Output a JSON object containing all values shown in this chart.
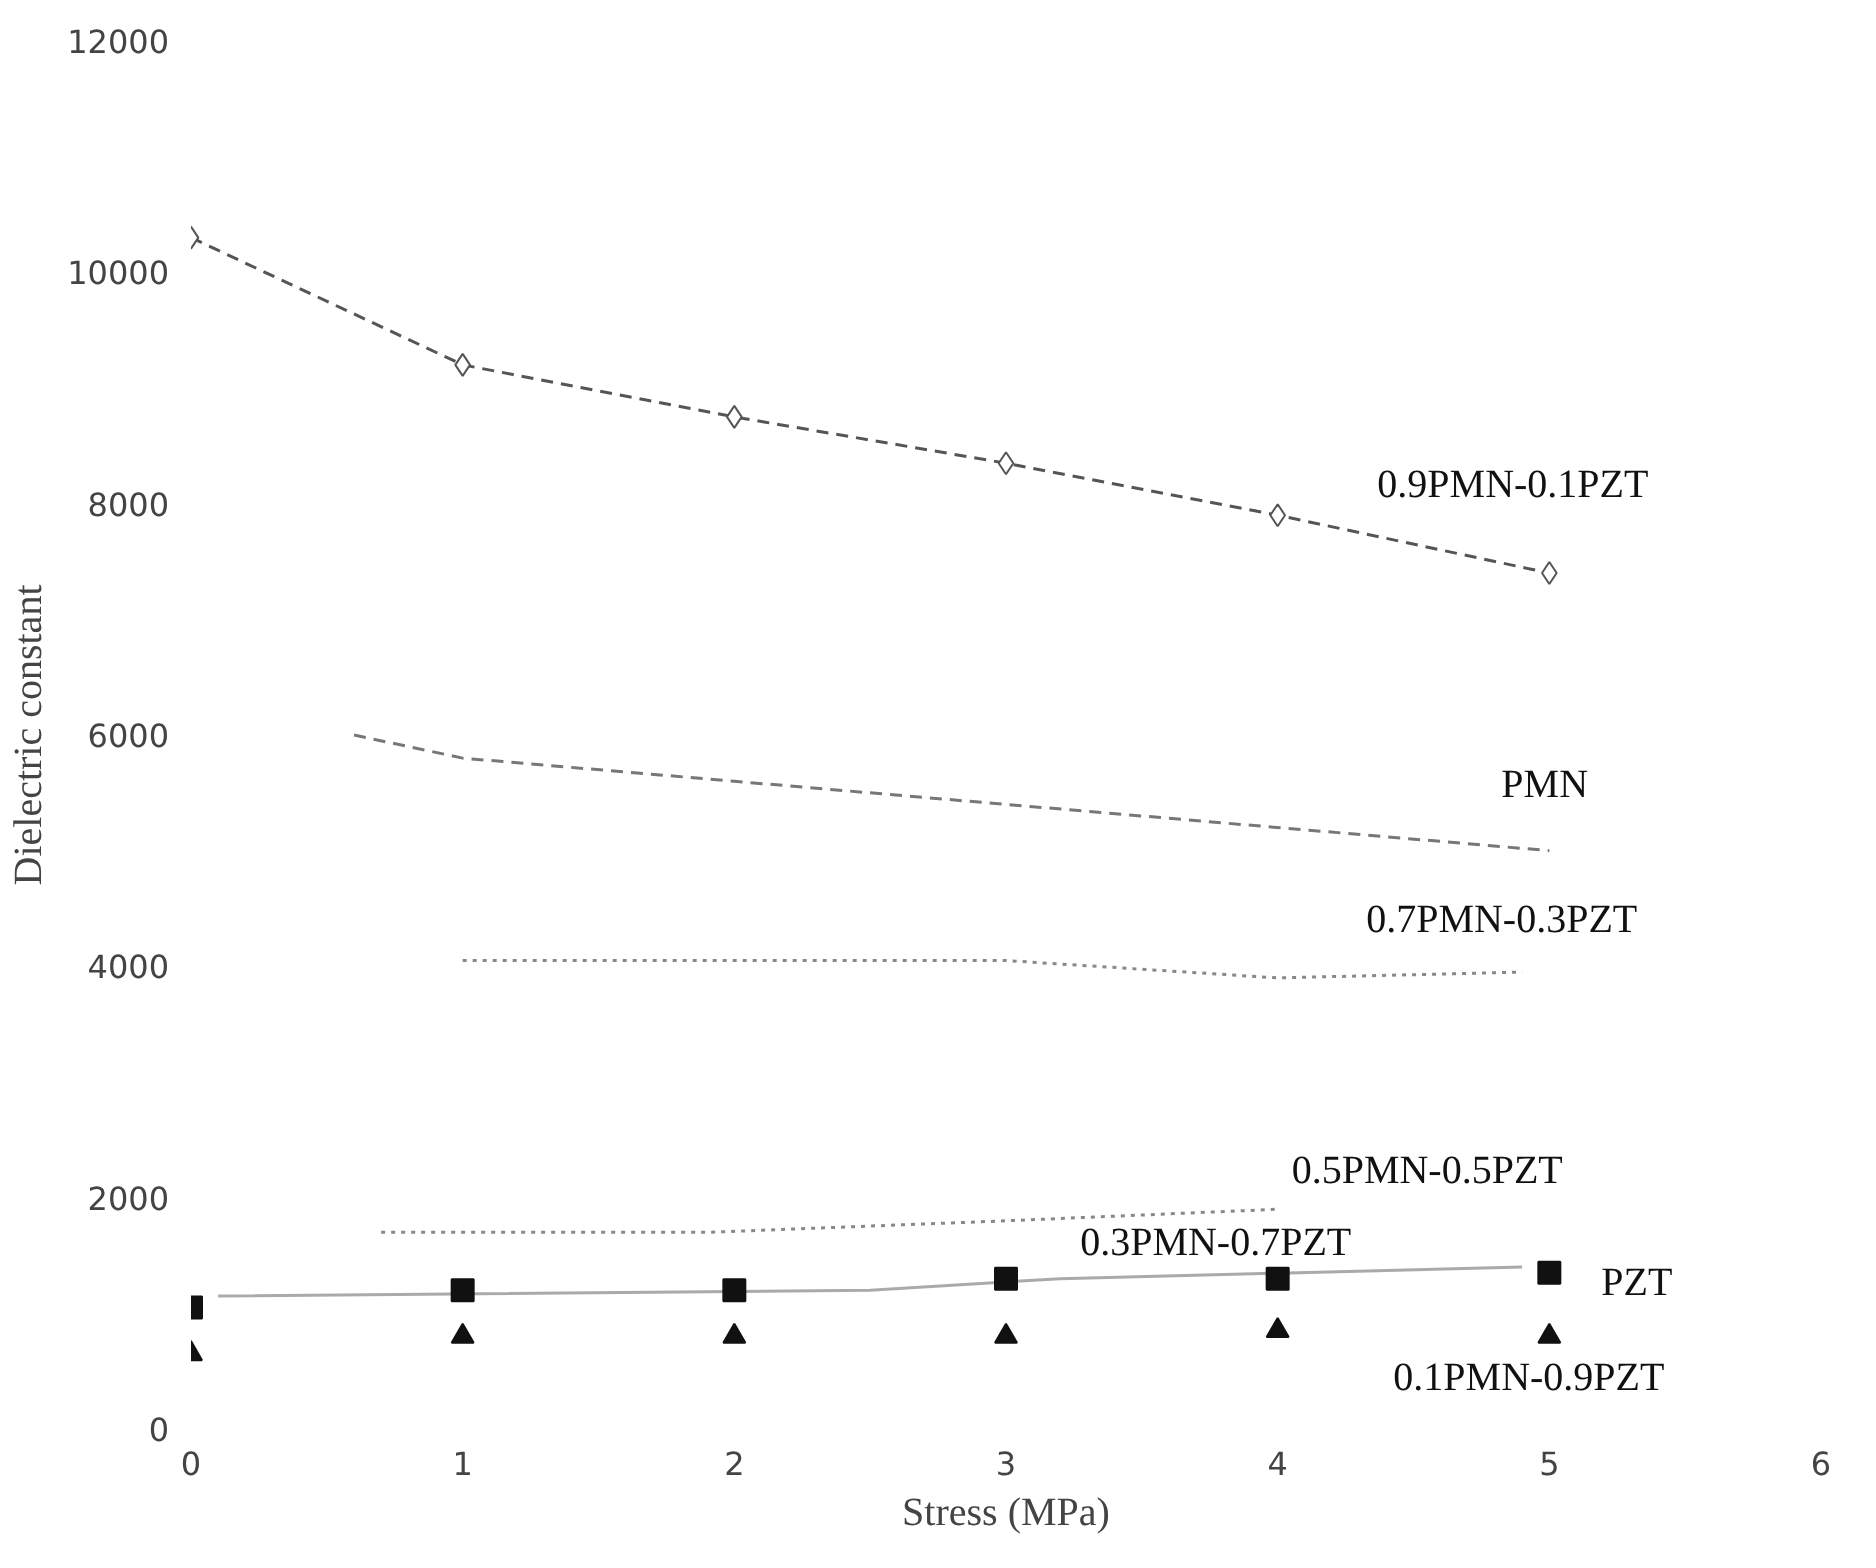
{
  "chart_data": {
    "type": "line",
    "xlabel": "Stress (MPa)",
    "ylabel": "Dielectric constant",
    "xlim": [
      0,
      6
    ],
    "ylim": [
      0,
      12000
    ],
    "xticks": [
      0,
      1,
      2,
      3,
      4,
      5,
      6
    ],
    "yticks": [
      0,
      2000,
      4000,
      6000,
      8000,
      10000,
      12000
    ],
    "grid": false,
    "legend": false,
    "series": [
      {
        "name": "0.9PMN-0.1PZT",
        "color": "#555555",
        "marker": "diamond",
        "line_style": "dashed",
        "x": [
          0,
          1,
          2,
          3,
          4,
          5
        ],
        "values": [
          10300,
          9200,
          8750,
          8350,
          7900,
          7400
        ]
      },
      {
        "name": "PMN",
        "color": "#777777",
        "marker": "none",
        "line_style": "dashed",
        "x": [
          0.6,
          1,
          2,
          3,
          5
        ],
        "values": [
          6000,
          5800,
          5600,
          5400,
          5000
        ]
      },
      {
        "name": "0.7PMN-0.3PZT",
        "color": "#888888",
        "marker": "none",
        "line_style": "dotted",
        "x": [
          1,
          3,
          4,
          4.9
        ],
        "values": [
          4050,
          4050,
          3900,
          3950
        ]
      },
      {
        "name": "0.5PMN-0.5PZT",
        "color": "#888888",
        "marker": "none",
        "line_style": "dotted",
        "x": [
          0.7,
          1.9,
          3,
          4
        ],
        "values": [
          1700,
          1700,
          1800,
          1900
        ]
      },
      {
        "name": "0.3PMN-0.7PZT",
        "color": "#aaaaaa",
        "marker": "none",
        "line_style": "solid",
        "x": [
          0.1,
          2.5,
          3.2,
          4.9
        ],
        "values": [
          1150,
          1200,
          1300,
          1400
        ]
      },
      {
        "name": "PZT",
        "type": "scatter",
        "color": "#111111",
        "marker": "square",
        "x": [
          0,
          1,
          2,
          3,
          4,
          5
        ],
        "values": [
          1050,
          1200,
          1200,
          1300,
          1300,
          1350
        ]
      },
      {
        "name": "0.1PMN-0.9PZT",
        "type": "scatter",
        "color": "#111111",
        "marker": "triangle",
        "x": [
          0,
          1,
          2,
          3,
          4,
          5
        ],
        "values": [
          650,
          800,
          800,
          800,
          850,
          800
        ]
      }
    ]
  }
}
